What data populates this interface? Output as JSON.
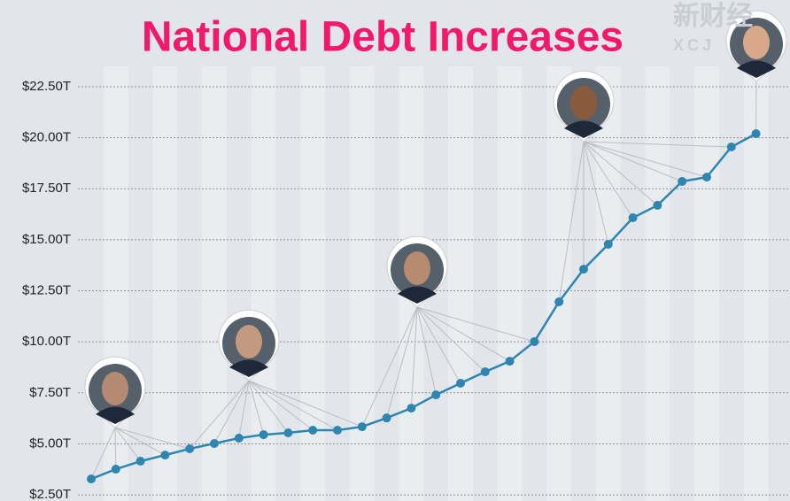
{
  "chart_data": {
    "type": "line",
    "title": "National Debt Increases",
    "watermark": [
      "新财经",
      "XCJ"
    ],
    "values": [
      3.28,
      3.76,
      4.15,
      4.45,
      4.76,
      5.02,
      5.28,
      5.45,
      5.54,
      5.67,
      5.67,
      5.84,
      6.27,
      6.75,
      7.4,
      7.97,
      8.53,
      9.05,
      10.01,
      11.96,
      13.56,
      14.78,
      16.08,
      16.69,
      17.86,
      18.07,
      19.55,
      20.2
    ],
    "color": "#2e86b0",
    "ylim": [
      2.2,
      26.75
    ],
    "yticks": [
      {
        "value": 2.5,
        "label": "$2.50T"
      },
      {
        "value": 5,
        "label": "$5.00T"
      },
      {
        "value": 7.5,
        "label": "$7.50T"
      },
      {
        "value": 10,
        "label": "$10.00T"
      },
      {
        "value": 12.5,
        "label": "$12.50T"
      },
      {
        "value": 15,
        "label": "$15.00T"
      },
      {
        "value": 17.5,
        "label": "$17.50T"
      },
      {
        "value": 20,
        "label": "$20.00T"
      },
      {
        "value": 22.5,
        "label": "$22.50T"
      }
    ],
    "grid": true
  }
}
